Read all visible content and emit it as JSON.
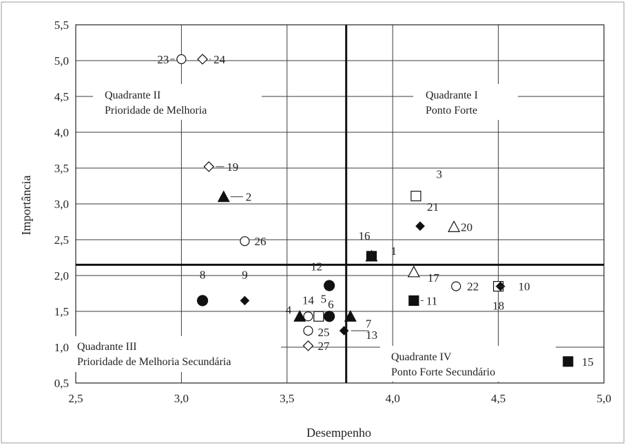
{
  "chart_data": {
    "type": "scatter",
    "xlabel": "Desempenho",
    "ylabel": "Importância",
    "xlim": [
      2.5,
      5.0
    ],
    "ylim": [
      0.5,
      5.5
    ],
    "x_ticks": [
      "2,5",
      "3,0",
      "3,5",
      "4,0",
      "4,5",
      "5,0"
    ],
    "y_ticks": [
      "0,5",
      "1,0",
      "1,5",
      "2,0",
      "2,5",
      "3,0",
      "3,5",
      "4,0",
      "4,5",
      "5,0",
      "5,5"
    ],
    "grid": true,
    "reference_lines": {
      "x": 3.78,
      "y": 2.15
    },
    "quadrants": [
      {
        "title": "Quadrante I",
        "subtitle": "Ponto Forte"
      },
      {
        "title": "Quadrante II",
        "subtitle": "Prioridade de Melhoria"
      },
      {
        "title": "Quadrante III",
        "subtitle": "Prioridade de Melhoria Secundária"
      },
      {
        "title": "Quadrante IV",
        "subtitle": "Ponto Forte Secundário"
      }
    ],
    "points": [
      {
        "id": "1",
        "x": 3.9,
        "y": 2.27,
        "marker": "triangle-filled"
      },
      {
        "id": "2",
        "x": 3.2,
        "y": 3.1,
        "marker": "triangle-filled"
      },
      {
        "id": "3",
        "x": 4.11,
        "y": 3.11,
        "marker": "square-open"
      },
      {
        "id": "4",
        "x": 3.56,
        "y": 1.43,
        "marker": "triangle-filled"
      },
      {
        "id": "5",
        "x": 3.65,
        "y": 1.43,
        "marker": "square-open"
      },
      {
        "id": "6",
        "x": 3.7,
        "y": 1.43,
        "marker": "circle-filled"
      },
      {
        "id": "7",
        "x": 3.8,
        "y": 1.43,
        "marker": "triangle-filled"
      },
      {
        "id": "8",
        "x": 3.1,
        "y": 1.65,
        "marker": "circle-filled"
      },
      {
        "id": "9",
        "x": 3.3,
        "y": 1.65,
        "marker": "diamond-filled"
      },
      {
        "id": "10",
        "x": 4.51,
        "y": 1.85,
        "marker": "diamond-filled"
      },
      {
        "id": "11",
        "x": 4.1,
        "y": 1.65,
        "marker": "square-filled"
      },
      {
        "id": "12",
        "x": 3.7,
        "y": 1.86,
        "marker": "circle-filled"
      },
      {
        "id": "13",
        "x": 3.77,
        "y": 1.23,
        "marker": "diamond-filled"
      },
      {
        "id": "14",
        "x": 3.6,
        "y": 1.43,
        "marker": "circle-open"
      },
      {
        "id": "15",
        "x": 4.83,
        "y": 0.8,
        "marker": "square-filled"
      },
      {
        "id": "16",
        "x": 3.9,
        "y": 2.27,
        "marker": "square-filled"
      },
      {
        "id": "17",
        "x": 4.1,
        "y": 2.05,
        "marker": "triangle-open"
      },
      {
        "id": "18",
        "x": 4.5,
        "y": 1.85,
        "marker": "square-open"
      },
      {
        "id": "19",
        "x": 3.13,
        "y": 3.52,
        "marker": "diamond-open"
      },
      {
        "id": "20",
        "x": 4.29,
        "y": 2.68,
        "marker": "triangle-open"
      },
      {
        "id": "21",
        "x": 4.13,
        "y": 2.69,
        "marker": "diamond-filled"
      },
      {
        "id": "22",
        "x": 4.3,
        "y": 1.85,
        "marker": "circle-open"
      },
      {
        "id": "23",
        "x": 3.0,
        "y": 5.02,
        "marker": "circle-open"
      },
      {
        "id": "24",
        "x": 3.1,
        "y": 5.02,
        "marker": "diamond-open"
      },
      {
        "id": "25",
        "x": 3.6,
        "y": 1.23,
        "marker": "circle-open"
      },
      {
        "id": "26",
        "x": 3.3,
        "y": 2.48,
        "marker": "circle-open"
      },
      {
        "id": "27",
        "x": 3.6,
        "y": 1.02,
        "marker": "diamond-open"
      }
    ]
  }
}
